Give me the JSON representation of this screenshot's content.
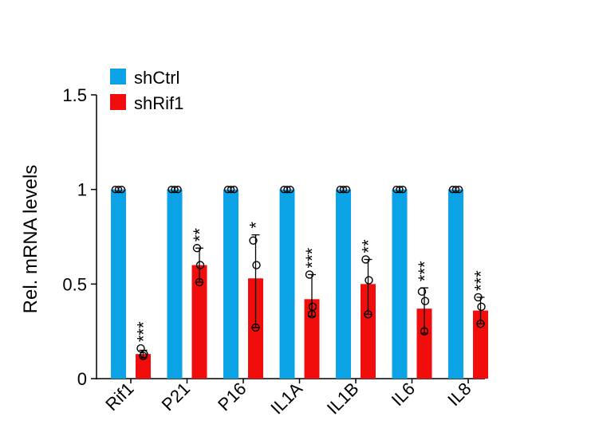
{
  "chart_data": {
    "type": "bar",
    "title": "",
    "xlabel": "",
    "ylabel": "Rel. mRNA levels",
    "ylim": [
      0,
      1.5
    ],
    "yticks": [
      0,
      0.5,
      1,
      1.5
    ],
    "ytick_labels": [
      "0",
      "0.5",
      "1",
      "1.5"
    ],
    "categories": [
      "Rif1",
      "P21",
      "P16",
      "IL1A",
      "IL1B",
      "IL6",
      "IL8"
    ],
    "series": [
      {
        "name": "shCtrl",
        "color": "#0BA3E6",
        "values": [
          1,
          1,
          1,
          1,
          1,
          1,
          1
        ],
        "points": [
          [
            1,
            1,
            1
          ],
          [
            1,
            1,
            1
          ],
          [
            1,
            1,
            1
          ],
          [
            1,
            1,
            1
          ],
          [
            1,
            1,
            1
          ],
          [
            1,
            1,
            1
          ],
          [
            1,
            1,
            1
          ]
        ]
      },
      {
        "name": "shRif1",
        "color": "#F20D0D",
        "values": [
          0.13,
          0.6,
          0.53,
          0.42,
          0.5,
          0.37,
          0.36
        ],
        "error_low": [
          0.11,
          0.51,
          0.27,
          0.33,
          0.34,
          0.24,
          0.29
        ],
        "error_high": [
          0.15,
          0.69,
          0.76,
          0.55,
          0.63,
          0.48,
          0.43
        ],
        "points": [
          [
            0.16,
            0.13,
            0.12
          ],
          [
            0.69,
            0.6,
            0.51
          ],
          [
            0.73,
            0.6,
            0.27
          ],
          [
            0.55,
            0.38,
            0.34
          ],
          [
            0.63,
            0.52,
            0.34
          ],
          [
            0.46,
            0.41,
            0.25
          ],
          [
            0.43,
            0.38,
            0.29
          ]
        ]
      }
    ],
    "significance": [
      "***",
      "**",
      "*",
      "***",
      "**",
      "***",
      "***"
    ],
    "legend": "top-left"
  }
}
